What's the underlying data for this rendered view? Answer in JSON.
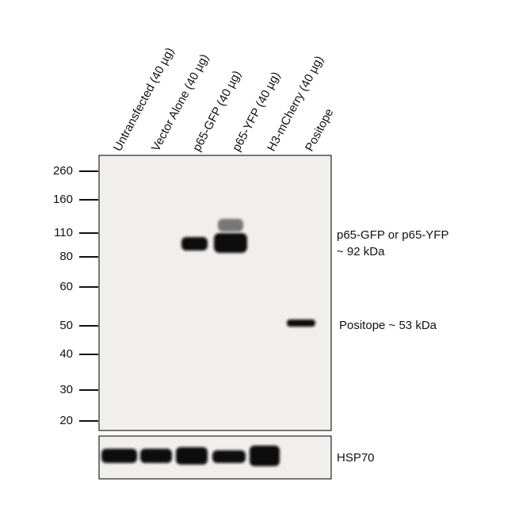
{
  "lanes": [
    "Untransfected (40 µg)",
    "Vector Alone (40 µg)",
    "p65-GFP (40 µg)",
    "p65-YFP (40 µg)",
    "H3-mCherry (40 µg)",
    "Positope"
  ],
  "markers": [
    260,
    160,
    110,
    80,
    60,
    50,
    40,
    30,
    20
  ],
  "annotations": {
    "p65": [
      "p65-GFP or p65-YFP",
      "~ 92 kDa"
    ],
    "positope": "Positope ~ 53 kDa",
    "loading_control": "HSP70"
  }
}
